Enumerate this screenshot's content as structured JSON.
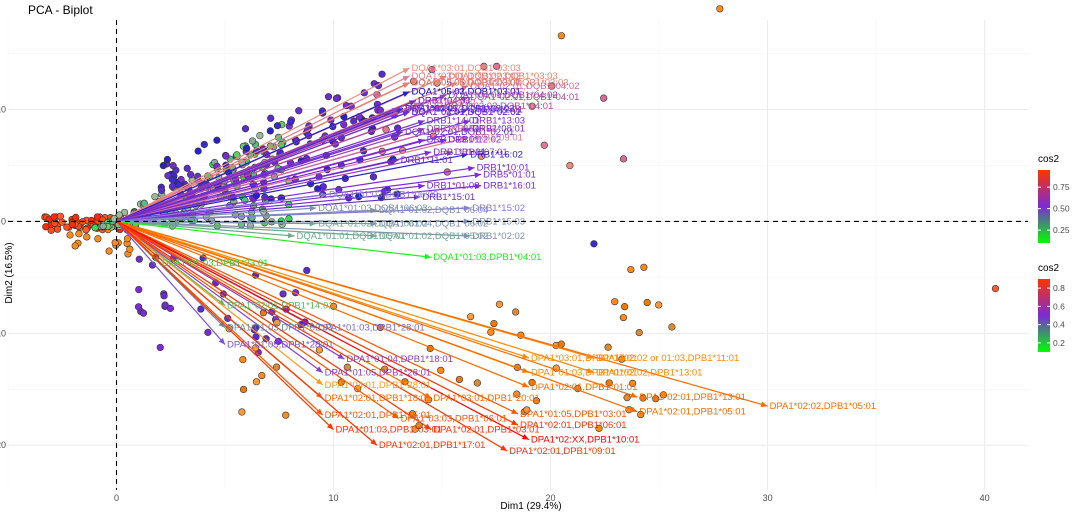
{
  "chart_data": {
    "type": "scatter",
    "title": "PCA - Biplot",
    "xlabel": "Dim1 (29.4%)",
    "ylabel": "Dim2 (16.5%)",
    "xlim": [
      -5,
      42
    ],
    "ylim": [
      -24,
      18
    ],
    "xticks": [
      0,
      10,
      20,
      30,
      40
    ],
    "yticks": [
      -20,
      -10,
      0,
      10
    ],
    "legends": [
      {
        "title": "cos2",
        "ticks": [
          "0.75",
          "0.50",
          "0.25"
        ],
        "tick_values": [
          0.75,
          0.5,
          0.25
        ],
        "range": [
          0.1,
          0.95
        ],
        "colors": [
          "#00ff00",
          "#7b2bd5",
          "#ff3300"
        ]
      },
      {
        "title": "cos2",
        "ticks": [
          "0.8",
          "0.6",
          "0.4",
          "0.2"
        ],
        "tick_values": [
          0.8,
          0.6,
          0.4,
          0.2
        ],
        "range": [
          0.1,
          0.9
        ],
        "colors": [
          "#00ff00",
          "#7b2bd5",
          "#ff3300"
        ]
      }
    ],
    "variables": [
      {
        "label": "DQA1*03:01,DQB1*03:03",
        "x": 13.5,
        "y": 13.7,
        "cos2": 0.6,
        "color": "#f08a78"
      },
      {
        "label": "DQA1*03:01,DQB1*03:02",
        "x": 13.5,
        "y": 13.0,
        "cos2": 0.6,
        "color": "#e07a90"
      },
      {
        "label": "DQA1*03:02,DQB1*03:03",
        "x": 15.2,
        "y": 13.0,
        "cos2": 0.6,
        "color": "#ee8066"
      },
      {
        "label": "DQA1*05:05,DQB1*03:01",
        "x": 13.5,
        "y": 12.4,
        "cos2": 0.45,
        "color": "#6a2ecb"
      },
      {
        "label": "DQA1*02:01,DQB1*03:01",
        "x": 13.5,
        "y": 12.4,
        "cos2": 0.6,
        "color": "#e07a90"
      },
      {
        "label": "DQA1*07:01,DQB1*03:02",
        "x": 13.5,
        "y": 12.4,
        "cos2": 0.6,
        "color": "#ee8066"
      },
      {
        "label": "DQA1*02:01,DQB1*03:03",
        "x": 15.7,
        "y": 12.4,
        "cos2": 0.6,
        "color": "#ee8066"
      },
      {
        "label": "DQA1*02:01,DQB1*04:02",
        "x": 16.2,
        "y": 12.1,
        "cos2": 0.55,
        "color": "#cf6a9e"
      },
      {
        "label": "DQA1*06:01,DQB1*03:01",
        "x": 13.5,
        "y": 11.6,
        "cos2": 0.4,
        "color": "#5b2ad2"
      },
      {
        "label": "DQA1*05:03,DQB1*03:01",
        "x": 13.5,
        "y": 11.6,
        "cos2": 0.4,
        "color": "#2c21c8"
      },
      {
        "label": "DQA1*04:01,DQB1*04:02",
        "x": 15.2,
        "y": 11.3,
        "cos2": 0.5,
        "color": "#9a3dbd"
      },
      {
        "label": "DQA1*02:01,DQB1*04:01",
        "x": 16.2,
        "y": 11.1,
        "cos2": 0.55,
        "color": "#b6489a"
      },
      {
        "label": "DRB1*04:03",
        "x": 13.8,
        "y": 10.8,
        "cos2": 0.45,
        "color": "#6a2ecb"
      },
      {
        "label": "DRB1*04:01",
        "x": 13.8,
        "y": 10.8,
        "cos2": 0.45,
        "color": "#6a2ecb"
      },
      {
        "label": "DQB1*03:02",
        "x": 14.0,
        "y": 10.6,
        "cos2": 0.55,
        "color": "#d86a9c"
      },
      {
        "label": "DQA1*03:03,DQB1*04:01",
        "x": 15.0,
        "y": 10.3,
        "cos2": 0.5,
        "color": "#b6489a"
      },
      {
        "label": "DRB1*04:05",
        "x": 13.2,
        "y": 10.1,
        "cos2": 0.45,
        "color": "#6a2ecb"
      },
      {
        "label": "DQA1*03:01,DQB1*03:02",
        "x": 13.2,
        "y": 10.1,
        "cos2": 0.3,
        "color": "#3b2bcc"
      },
      {
        "label": "DRB1*04:02",
        "x": 13.0,
        "y": 10.1,
        "cos2": 0.5,
        "color": "#9a3dbd"
      },
      {
        "label": "DRB1*12:01",
        "x": 16.2,
        "y": 10.0,
        "cos2": 0.45,
        "color": "#7b2bd5"
      },
      {
        "label": "DQA1*02:01,DQB1*02:02",
        "x": 13.5,
        "y": 9.8,
        "cos2": 0.45,
        "color": "#6a2ecb"
      },
      {
        "label": "DQA1*04:01,DQB1*02:01",
        "x": 13.5,
        "y": 9.8,
        "cos2": 0.45,
        "color": "#6a2ecb"
      },
      {
        "label": "DRB1*14:01",
        "x": 14.2,
        "y": 9.0,
        "cos2": 0.45,
        "color": "#7b2bd5"
      },
      {
        "label": "DRB1*13:03",
        "x": 16.3,
        "y": 9.0,
        "cos2": 0.45,
        "color": "#7b2bd5"
      },
      {
        "label": "DRB1*14:54",
        "x": 14.2,
        "y": 8.3,
        "cos2": 0.5,
        "color": "#9a3dbd"
      },
      {
        "label": "DRB1*09:02",
        "x": 15.0,
        "y": 8.3,
        "cos2": 0.55,
        "color": "#d86a9c"
      },
      {
        "label": "DRB1*08:01",
        "x": 16.3,
        "y": 8.3,
        "cos2": 0.45,
        "color": "#7b2bd5"
      },
      {
        "label": "DQA1*02:01,DQB1*02:01",
        "x": 13.2,
        "y": 8.0,
        "cos2": 0.45,
        "color": "#6a2ecb"
      },
      {
        "label": "DRB1*13:01",
        "x": 14.2,
        "y": 7.3,
        "cos2": 0.45,
        "color": "#7b2bd5"
      },
      {
        "label": "DRB1*12:02",
        "x": 15.2,
        "y": 7.3,
        "cos2": 0.45,
        "color": "#7b2bd5"
      },
      {
        "label": "DRB1*09:01",
        "x": 16.2,
        "y": 7.5,
        "cos2": 0.6,
        "color": "#e07a90"
      },
      {
        "label": "DRB1*01:01",
        "x": 14.5,
        "y": 6.2,
        "cos2": 0.45,
        "color": "#7b2bd5"
      },
      {
        "label": "DRB1*07:01",
        "x": 15.5,
        "y": 6.2,
        "cos2": 0.5,
        "color": "#9a3dbd"
      },
      {
        "label": "DRB1*16:02",
        "x": 16.2,
        "y": 6.0,
        "cos2": 0.25,
        "color": "#2c21c8"
      },
      {
        "label": "DRB1*11:01",
        "x": 13.0,
        "y": 5.5,
        "cos2": 0.45,
        "color": "#6a2ecb"
      },
      {
        "label": "DRB1*10:01",
        "x": 16.5,
        "y": 4.8,
        "cos2": 0.45,
        "color": "#7b2bd5"
      },
      {
        "label": "DRB5*01:01",
        "x": 16.8,
        "y": 4.2,
        "cos2": 0.45,
        "color": "#7b2bd5"
      },
      {
        "label": "DRB1*01:03",
        "x": 14.2,
        "y": 3.2,
        "cos2": 0.45,
        "color": "#7b2bd5"
      },
      {
        "label": "DRB1*16:01",
        "x": 16.8,
        "y": 3.2,
        "cos2": 0.45,
        "color": "#7b2bd5"
      },
      {
        "label": "DQA1*01:03,DQB1*06:09",
        "x": 9.7,
        "y": 2.4,
        "cos2": 0.35,
        "color": "#8877dd"
      },
      {
        "label": "DRB1*15:01",
        "x": 14.0,
        "y": 2.2,
        "cos2": 0.45,
        "color": "#6a2ecb"
      },
      {
        "label": "DQA1*01:03,DQB1*06:03",
        "x": 9.2,
        "y": 1.2,
        "cos2": 0.3,
        "color": "#7f8fb0"
      },
      {
        "label": "DQA1*01:02,DQB1*06:04",
        "x": 12.0,
        "y": 1.0,
        "cos2": 0.3,
        "color": "#7f8fb0"
      },
      {
        "label": "DRB1*15:02",
        "x": 16.3,
        "y": 1.2,
        "cos2": 0.35,
        "color": "#8877dd"
      },
      {
        "label": "DQA1*01:02,DQB1*06:02",
        "x": 9.2,
        "y": -0.2,
        "cos2": 0.25,
        "color": "#6fa890"
      },
      {
        "label": "DQA1*01:04,DQB1*06:02",
        "x": 12.0,
        "y": -0.2,
        "cos2": 0.3,
        "color": "#7f8fb0"
      },
      {
        "label": "DRB1*15:03",
        "x": 16.3,
        "y": 0.0,
        "cos2": 0.3,
        "color": "#7f8fb0"
      },
      {
        "label": "DQA1*01:01,DQB1*05:01",
        "x": 8.2,
        "y": -1.3,
        "cos2": 0.25,
        "color": "#6fa890"
      },
      {
        "label": "DQA1*01:02,DQB1*05:02",
        "x": 12.0,
        "y": -1.3,
        "cos2": 0.25,
        "color": "#6fa890"
      },
      {
        "label": "DRB1*02:02",
        "x": 16.3,
        "y": -1.3,
        "cos2": 0.3,
        "color": "#7f8fb0"
      },
      {
        "label": "DQA1*01:03,DPB1*04:01",
        "x": 14.5,
        "y": -3.2,
        "cos2": 0.1,
        "color": "#22ee22"
      },
      {
        "label": "DPA1*01:03,DPB1*23:01",
        "x": 2.0,
        "y": -3.7,
        "cos2": 0.15,
        "color": "#33cc33"
      },
      {
        "label": "DPA1*02:01,DPB1*14:01",
        "x": 5.0,
        "y": -7.5,
        "cos2": 0.2,
        "color": "#5cb85c"
      },
      {
        "label": "DPA1*01:03,DPB1*02:01",
        "x": 5.0,
        "y": -9.5,
        "cos2": 0.3,
        "color": "#6a8aa0"
      },
      {
        "label": "DPA1*01:03,DPB1*28:01",
        "x": 9.2,
        "y": -9.5,
        "cos2": 0.35,
        "color": "#7b6bcd"
      },
      {
        "label": "DPA1*01:05,DPB1*28:01",
        "x": 5.0,
        "y": -11.0,
        "cos2": 0.4,
        "color": "#7b50d5"
      },
      {
        "label": "DPA1*01:04,DPB1*18:01",
        "x": 10.5,
        "y": -12.3,
        "cos2": 0.45,
        "color": "#8a40c8"
      },
      {
        "label": "DPA1*03:01,DPB1*17:01",
        "x": 19.0,
        "y": -12.2,
        "cos2": 0.8,
        "color": "#ff8a00"
      },
      {
        "label": "DPA1*02:02 or 01:03,DPB1*11:01",
        "x": 22.0,
        "y": -12.2,
        "cos2": 0.8,
        "color": "#ff8a00"
      },
      {
        "label": "DPA1*01:05,DPB1*28:01",
        "x": 9.5,
        "y": -13.5,
        "cos2": 0.45,
        "color": "#8a40c8"
      },
      {
        "label": "DPA1*01:03,DPB1*01:01",
        "x": 19.0,
        "y": -13.5,
        "cos2": 0.8,
        "color": "#ff8a00"
      },
      {
        "label": "DPA1*02:02,DPB1*13:01",
        "x": 22.0,
        "y": -13.5,
        "cos2": 0.8,
        "color": "#ff8a00"
      },
      {
        "label": "DPA1*04:01,DPB1*28:01",
        "x": 9.5,
        "y": -14.6,
        "cos2": 0.75,
        "color": "#ff9a1a"
      },
      {
        "label": "DPA1*02:01,DPB1*01:01",
        "x": 19.0,
        "y": -14.8,
        "cos2": 0.85,
        "color": "#ff6a00"
      },
      {
        "label": "DPA1*02:01,DPB1*13:01",
        "x": 24.0,
        "y": -15.7,
        "cos2": 0.85,
        "color": "#ff6a00"
      },
      {
        "label": "DPA1*02:02,DPB1*05:01",
        "x": 30.0,
        "y": -16.5,
        "cos2": 0.85,
        "color": "#ff6a00"
      },
      {
        "label": "DPA1*02:01,DPB1*18:01",
        "x": 9.5,
        "y": -15.8,
        "cos2": 0.85,
        "color": "#ff6a00"
      },
      {
        "label": "DPA1*03:01,DPB1*20:01",
        "x": 14.5,
        "y": -15.8,
        "cos2": 0.85,
        "color": "#ff6a00"
      },
      {
        "label": "DPA1*02:01,DPB1*05:01",
        "x": 24.0,
        "y": -17.0,
        "cos2": 0.85,
        "color": "#ff6a00"
      },
      {
        "label": "DPA1*02:01,DPB1*15:01",
        "x": 9.5,
        "y": -17.3,
        "cos2": 0.85,
        "color": "#ff5500"
      },
      {
        "label": "DPA1*01:05,DPB1*03:01",
        "x": 18.5,
        "y": -17.2,
        "cos2": 0.85,
        "color": "#ff5500"
      },
      {
        "label": "DPA1*03:03,DPB1*06:01",
        "x": 13.0,
        "y": -17.6,
        "cos2": 0.85,
        "color": "#ff5500"
      },
      {
        "label": "DPA1*02:01,DPB1*06:01",
        "x": 18.5,
        "y": -18.2,
        "cos2": 0.9,
        "color": "#ff3300"
      },
      {
        "label": "DPA1*01:03,DPB1*03:01",
        "x": 10.0,
        "y": -18.6,
        "cos2": 0.9,
        "color": "#ff3300"
      },
      {
        "label": "DPA1*02:01,DPB1*03:01",
        "x": 14.5,
        "y": -18.6,
        "cos2": 0.9,
        "color": "#ff3300"
      },
      {
        "label": "DPA1*02:XX,DPB1*10:01",
        "x": 19.0,
        "y": -19.5,
        "cos2": 0.95,
        "color": "#ff0000"
      },
      {
        "label": "DPA1*02:01,DPB1*17:01",
        "x": 12.0,
        "y": -20.0,
        "cos2": 0.9,
        "color": "#ff3300"
      },
      {
        "label": "DPA1*02:01,DPB1*09:01",
        "x": 18.0,
        "y": -20.5,
        "cos2": 0.9,
        "color": "#ff3300"
      }
    ]
  }
}
